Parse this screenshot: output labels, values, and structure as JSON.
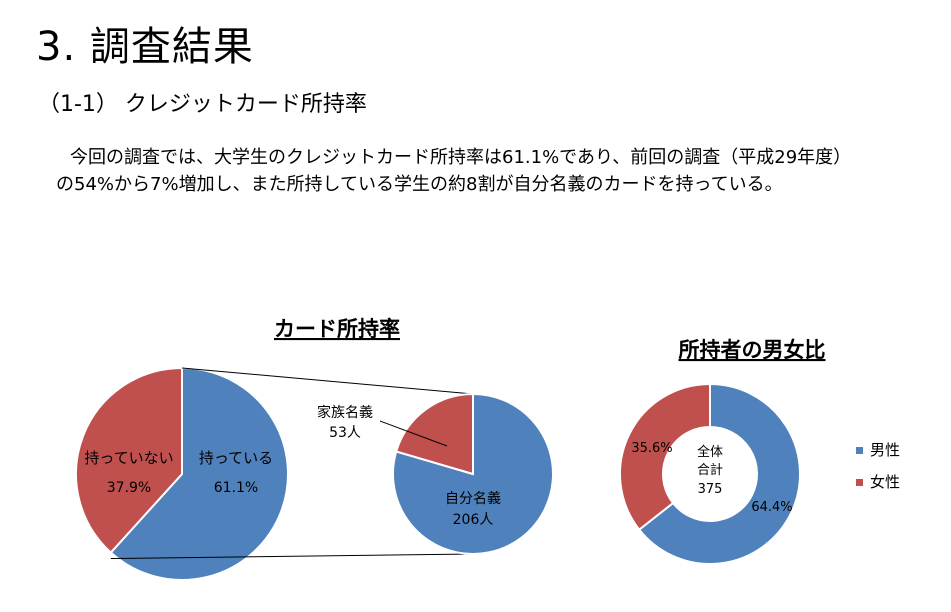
{
  "heading": "3. 調査結果",
  "subheading": "（1-1） クレジットカード所持率",
  "paragraph": {
    "line1": "今回の調査では、大学生のクレジットカード所持率は61.1%であり、前回の調査（平成29年度）",
    "line2": "の54%から7%増加し、また所持している学生の約8割が自分名義のカードを持っている。"
  },
  "chart_data": [
    {
      "type": "pie",
      "title": "カード所持率",
      "slices": [
        {
          "label": "持っている",
          "value": 61.1,
          "value_label": "61.1%",
          "color": "#4F81BD"
        },
        {
          "label": "持っていない",
          "value": 37.9,
          "value_label": "37.9%",
          "color": "#C0504D"
        }
      ]
    },
    {
      "type": "pie",
      "slices": [
        {
          "label": "自分名義",
          "value": 206,
          "value_label": "206人",
          "color": "#4F81BD"
        },
        {
          "label": "家族名義",
          "value": 53,
          "value_label": "53人",
          "color": "#C0504D"
        }
      ]
    },
    {
      "type": "pie",
      "subtype": "donut",
      "title": "所持者の男女比",
      "center_label": [
        "全体",
        "合計",
        "375"
      ],
      "slices": [
        {
          "label": "男性",
          "value": 64.4,
          "value_label": "64.4%",
          "color": "#4F81BD"
        },
        {
          "label": "女性",
          "value": 35.6,
          "value_label": "35.6%",
          "color": "#C0504D"
        }
      ],
      "legend": {
        "position": "right",
        "items": [
          "男性",
          "女性"
        ]
      }
    }
  ]
}
